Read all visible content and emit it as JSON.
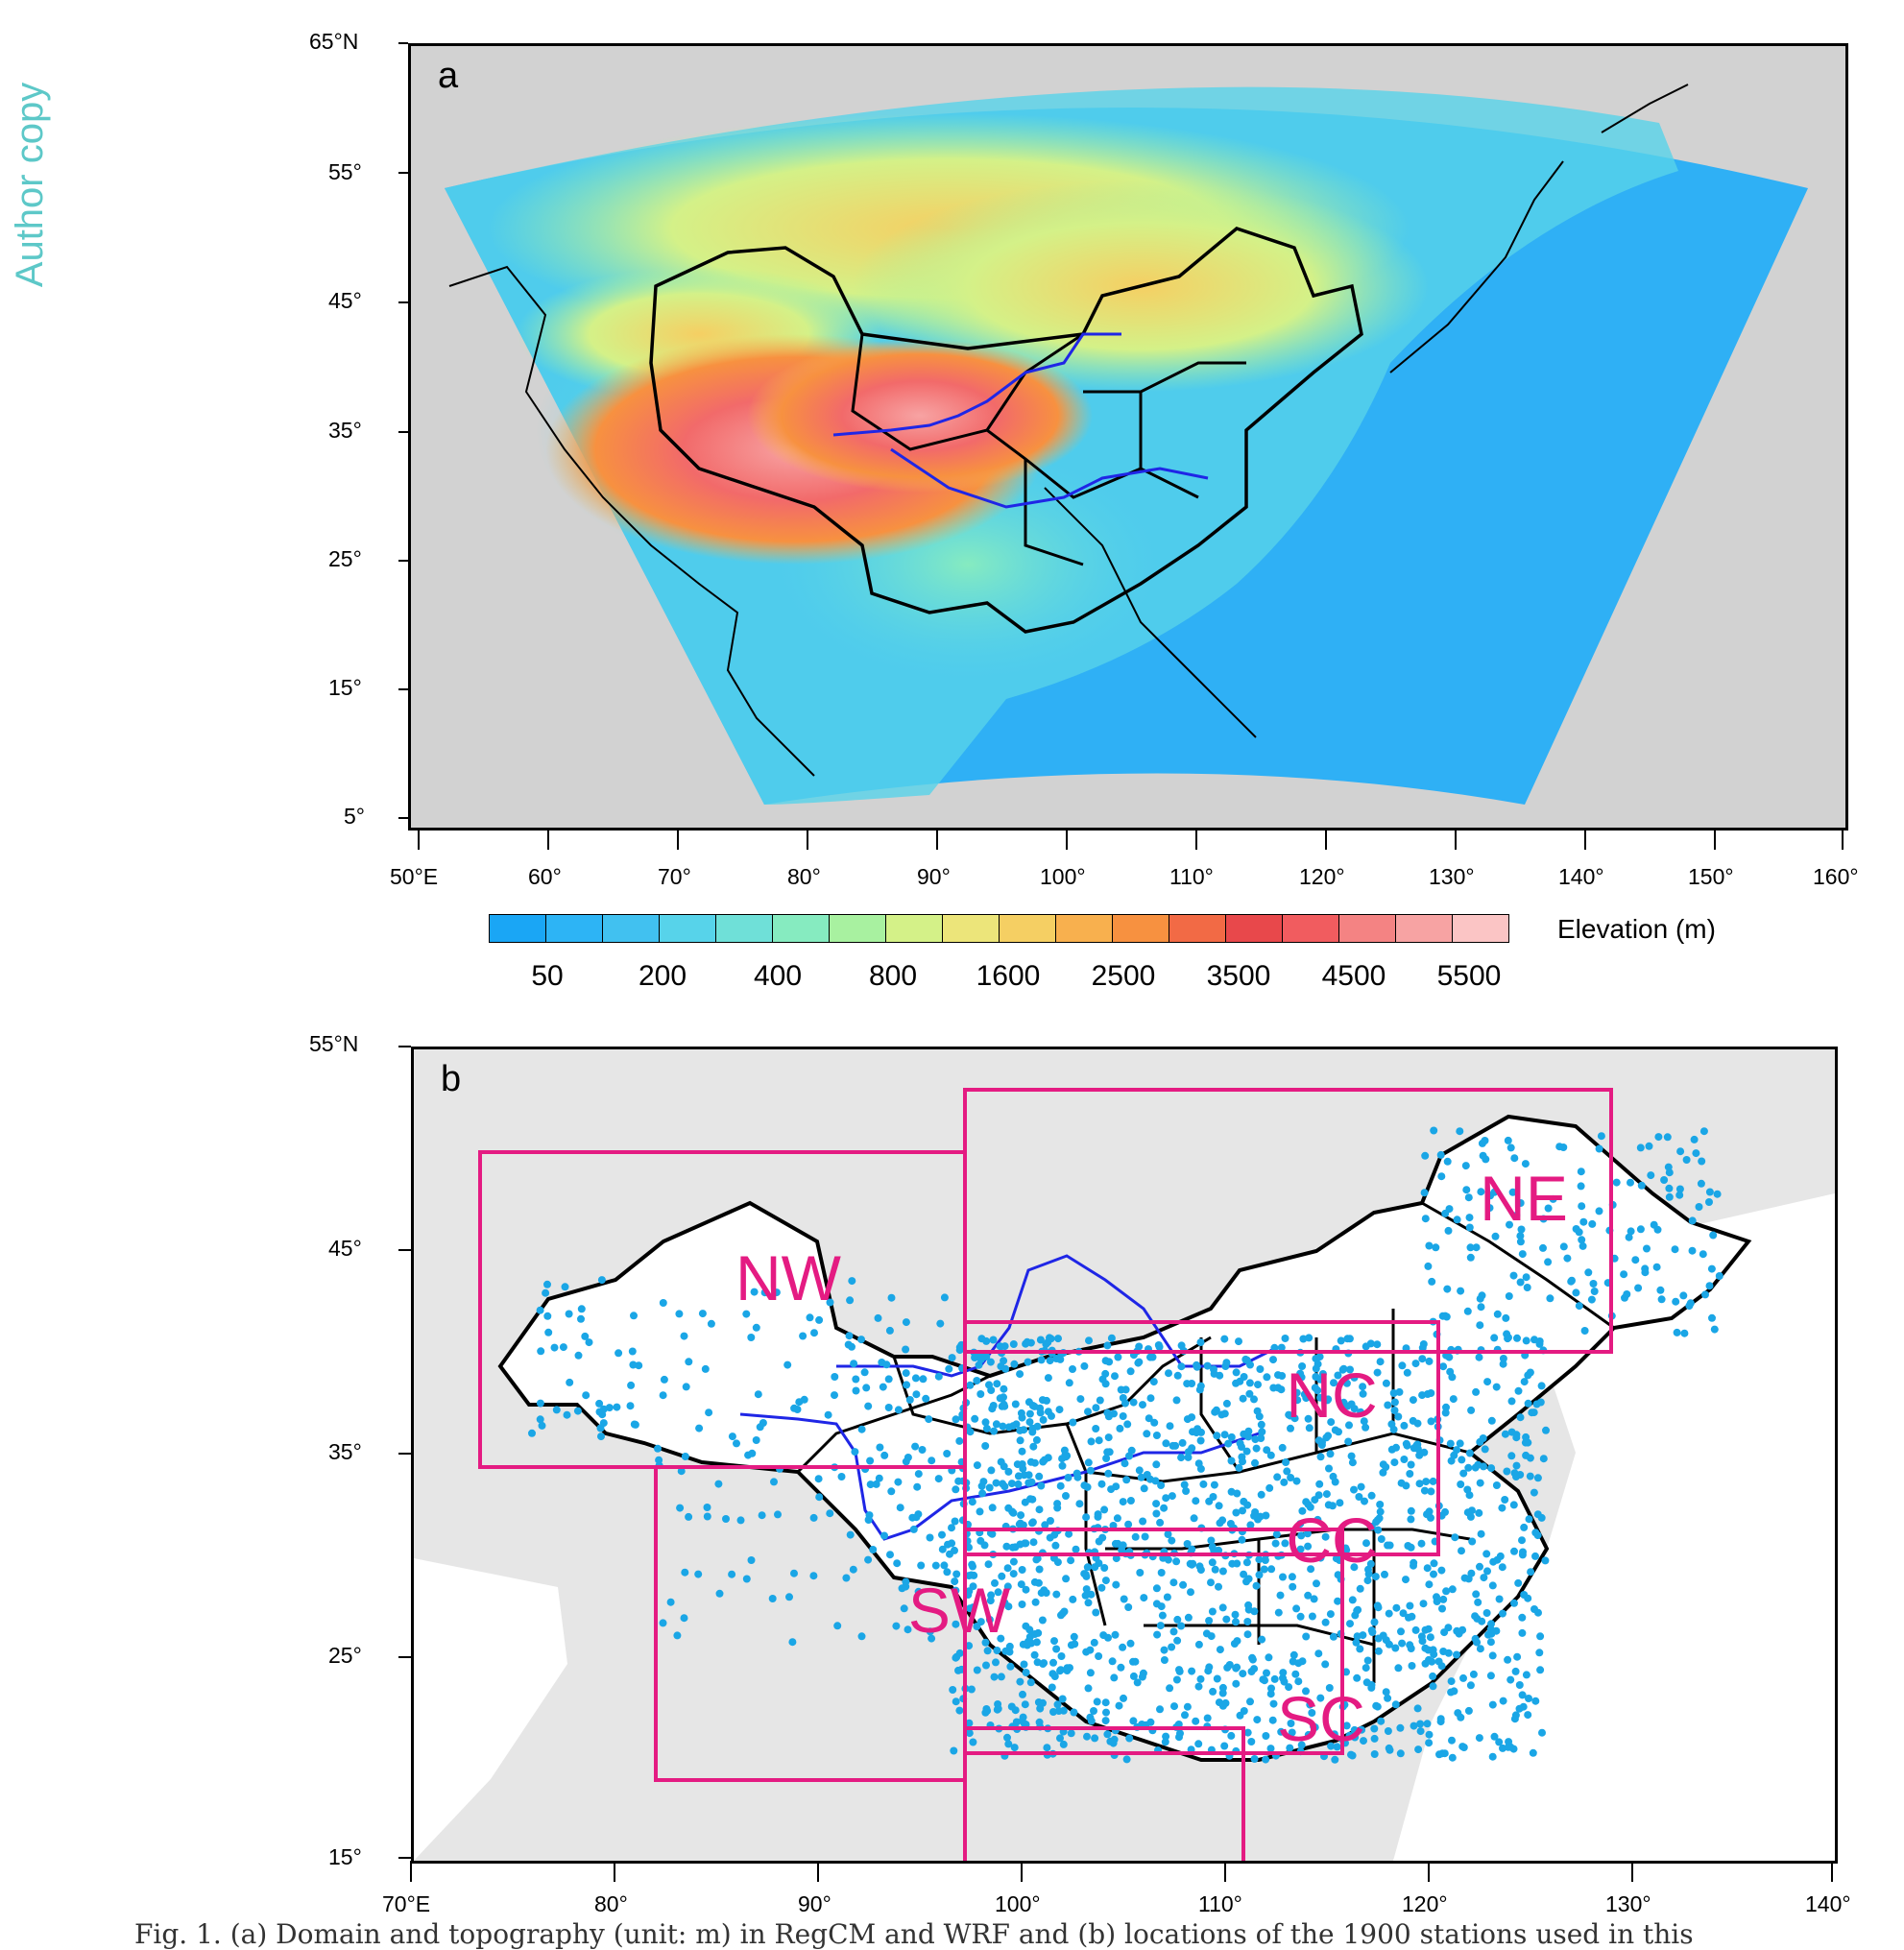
{
  "watermark": "Author copy",
  "panel_a": {
    "letter": "a",
    "y_ticks": [
      "65°N",
      "55°",
      "45°",
      "35°",
      "25°",
      "15°",
      "5°"
    ],
    "x_ticks": [
      "50°E",
      "60°",
      "70°",
      "80°",
      "90°",
      "100°",
      "110°",
      "120°",
      "130°",
      "140°",
      "150°",
      "160°"
    ],
    "legend_title": "Elevation (m)",
    "colorbar_labels": [
      "50",
      "200",
      "400",
      "800",
      "1600",
      "2500",
      "3500",
      "4500",
      "5500"
    ],
    "colorbar_colors": [
      "#1aa6f5",
      "#2db4f5",
      "#41c1f0",
      "#57d3ea",
      "#6fe0d8",
      "#86ebc0",
      "#a8f1a0",
      "#d4f188",
      "#ece57a",
      "#f5cf63",
      "#f8b04e",
      "#f79140",
      "#f26a45",
      "#e8484b",
      "#f15c5f",
      "#f48383",
      "#f7a3a3",
      "#fbc5c5"
    ]
  },
  "panel_b": {
    "letter": "b",
    "y_ticks": [
      "55°N",
      "45°",
      "35°",
      "25°",
      "15°"
    ],
    "x_ticks": [
      "70°E",
      "80°",
      "90°",
      "100°",
      "110°",
      "120°",
      "130°",
      "140°"
    ],
    "region_labels": [
      "NW",
      "NE",
      "NC",
      "CC",
      "SW",
      "SC"
    ]
  },
  "caption": "Fig. 1. (a) Domain and topography (unit: m) in RegCM and WRF and (b) locations of the 1900 stations used in this"
}
